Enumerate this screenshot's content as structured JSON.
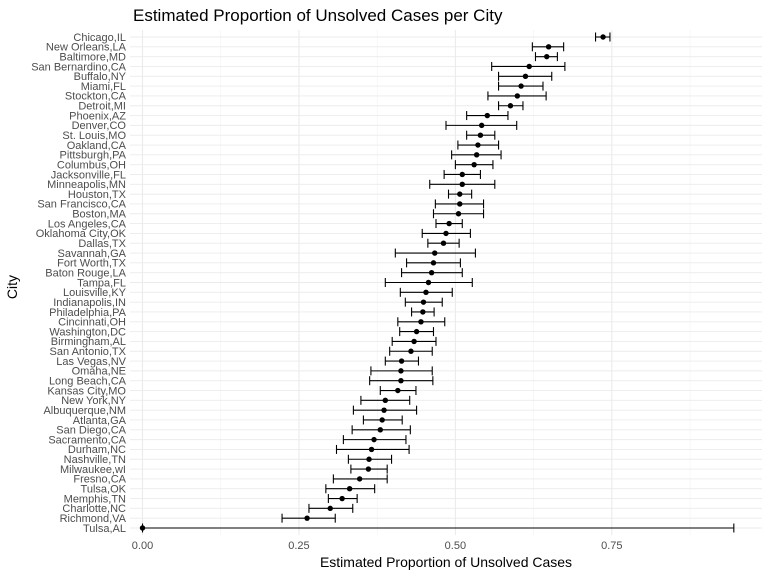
{
  "chart_data": {
    "type": "errorbar",
    "title": "Estimated Proportion of Unsolved Cases per City",
    "xlabel": "Estimated Proportion of Unsolved Cases",
    "ylabel": "City",
    "xlim": [
      -0.02,
      0.99
    ],
    "x_ticks": [
      0.0,
      0.25,
      0.5,
      0.75
    ],
    "x_tick_labels": [
      "0.00",
      "0.25",
      "0.50",
      "0.75"
    ],
    "grid": true,
    "legend": "none",
    "colors": {
      "point": "#000000",
      "errorbar": "#000000",
      "grid": "#ebebeb",
      "text": "#4d4d4d"
    },
    "points": [
      {
        "city": "Chicago,IL",
        "estimate": 0.736,
        "lower": 0.724,
        "upper": 0.747
      },
      {
        "city": "New Orleans,LA",
        "estimate": 0.649,
        "lower": 0.623,
        "upper": 0.673
      },
      {
        "city": "Baltimore,MD",
        "estimate": 0.646,
        "lower": 0.628,
        "upper": 0.663
      },
      {
        "city": "San Bernardino,CA",
        "estimate": 0.618,
        "lower": 0.558,
        "upper": 0.675
      },
      {
        "city": "Buffalo,NY",
        "estimate": 0.612,
        "lower": 0.569,
        "upper": 0.654
      },
      {
        "city": "Miami,FL",
        "estimate": 0.605,
        "lower": 0.569,
        "upper": 0.64
      },
      {
        "city": "Stockton,CA",
        "estimate": 0.599,
        "lower": 0.552,
        "upper": 0.645
      },
      {
        "city": "Detroit,MI",
        "estimate": 0.588,
        "lower": 0.569,
        "upper": 0.608
      },
      {
        "city": "Phoenix,AZ",
        "estimate": 0.551,
        "lower": 0.518,
        "upper": 0.584
      },
      {
        "city": "Denver,CO",
        "estimate": 0.542,
        "lower": 0.485,
        "upper": 0.598
      },
      {
        "city": "St. Louis,MO",
        "estimate": 0.54,
        "lower": 0.518,
        "upper": 0.563
      },
      {
        "city": "Oakland,CA",
        "estimate": 0.536,
        "lower": 0.504,
        "upper": 0.569
      },
      {
        "city": "Pittsburgh,PA",
        "estimate": 0.534,
        "lower": 0.494,
        "upper": 0.573
      },
      {
        "city": "Columbus,OH",
        "estimate": 0.53,
        "lower": 0.5,
        "upper": 0.56
      },
      {
        "city": "Jacksonville,FL",
        "estimate": 0.511,
        "lower": 0.482,
        "upper": 0.54
      },
      {
        "city": "Minneapolis,MN",
        "estimate": 0.511,
        "lower": 0.459,
        "upper": 0.563
      },
      {
        "city": "Houston,TX",
        "estimate": 0.507,
        "lower": 0.489,
        "upper": 0.526
      },
      {
        "city": "San Francisco,CA",
        "estimate": 0.507,
        "lower": 0.468,
        "upper": 0.545
      },
      {
        "city": "Boston,MA",
        "estimate": 0.505,
        "lower": 0.465,
        "upper": 0.545
      },
      {
        "city": "Los Angeles,CA",
        "estimate": 0.49,
        "lower": 0.469,
        "upper": 0.511
      },
      {
        "city": "Oklahoma City,OK",
        "estimate": 0.485,
        "lower": 0.447,
        "upper": 0.524
      },
      {
        "city": "Dallas,TX",
        "estimate": 0.481,
        "lower": 0.456,
        "upper": 0.506
      },
      {
        "city": "Savannah,GA",
        "estimate": 0.467,
        "lower": 0.404,
        "upper": 0.532
      },
      {
        "city": "Fort Worth,TX",
        "estimate": 0.465,
        "lower": 0.422,
        "upper": 0.508
      },
      {
        "city": "Baton Rouge,LA",
        "estimate": 0.462,
        "lower": 0.414,
        "upper": 0.511
      },
      {
        "city": "Tampa,FL",
        "estimate": 0.457,
        "lower": 0.388,
        "upper": 0.527
      },
      {
        "city": "Louisville,KY",
        "estimate": 0.453,
        "lower": 0.412,
        "upper": 0.495
      },
      {
        "city": "Indianapolis,IN",
        "estimate": 0.449,
        "lower": 0.42,
        "upper": 0.479
      },
      {
        "city": "Philadelphia,PA",
        "estimate": 0.448,
        "lower": 0.43,
        "upper": 0.466
      },
      {
        "city": "Cincinnati,OH",
        "estimate": 0.445,
        "lower": 0.408,
        "upper": 0.483
      },
      {
        "city": "Washington,DC",
        "estimate": 0.438,
        "lower": 0.411,
        "upper": 0.465
      },
      {
        "city": "Birmingham,AL",
        "estimate": 0.434,
        "lower": 0.399,
        "upper": 0.469
      },
      {
        "city": "San Antonio,TX",
        "estimate": 0.429,
        "lower": 0.395,
        "upper": 0.463
      },
      {
        "city": "Las Vegas,NV",
        "estimate": 0.414,
        "lower": 0.388,
        "upper": 0.441
      },
      {
        "city": "Omaha,NE",
        "estimate": 0.413,
        "lower": 0.365,
        "upper": 0.463
      },
      {
        "city": "Long Beach,CA",
        "estimate": 0.413,
        "lower": 0.363,
        "upper": 0.464
      },
      {
        "city": "Kansas City,MO",
        "estimate": 0.408,
        "lower": 0.38,
        "upper": 0.437
      },
      {
        "city": "New York,NY",
        "estimate": 0.388,
        "lower": 0.349,
        "upper": 0.427
      },
      {
        "city": "Albuquerque,NM",
        "estimate": 0.386,
        "lower": 0.337,
        "upper": 0.438
      },
      {
        "city": "Atlanta,GA",
        "estimate": 0.383,
        "lower": 0.353,
        "upper": 0.415
      },
      {
        "city": "San Diego,CA",
        "estimate": 0.38,
        "lower": 0.335,
        "upper": 0.428
      },
      {
        "city": "Sacramento,CA",
        "estimate": 0.37,
        "lower": 0.321,
        "upper": 0.421
      },
      {
        "city": "Durham,NC",
        "estimate": 0.366,
        "lower": 0.31,
        "upper": 0.426
      },
      {
        "city": "Nashville,TN",
        "estimate": 0.362,
        "lower": 0.329,
        "upper": 0.398
      },
      {
        "city": "Milwaukee,wI",
        "estimate": 0.361,
        "lower": 0.333,
        "upper": 0.391
      },
      {
        "city": "Fresno,CA",
        "estimate": 0.347,
        "lower": 0.305,
        "upper": 0.391
      },
      {
        "city": "Tulsa,OK",
        "estimate": 0.331,
        "lower": 0.293,
        "upper": 0.371
      },
      {
        "city": "Memphis,TN",
        "estimate": 0.319,
        "lower": 0.297,
        "upper": 0.343
      },
      {
        "city": "Charlotte,NC",
        "estimate": 0.3,
        "lower": 0.266,
        "upper": 0.336
      },
      {
        "city": "Richmond,VA",
        "estimate": 0.263,
        "lower": 0.223,
        "upper": 0.308
      },
      {
        "city": "Tulsa,AL",
        "estimate": 0.0,
        "lower": 0.0,
        "upper": 0.945
      }
    ]
  }
}
